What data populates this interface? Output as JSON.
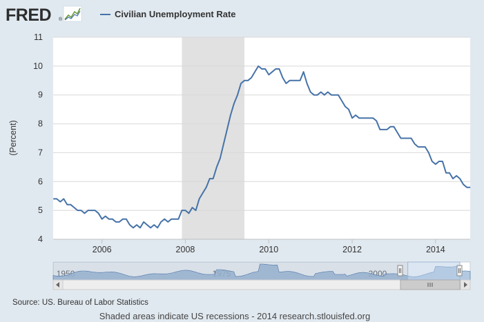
{
  "header": {
    "logo_text": "FRED",
    "logo_mark": "®",
    "logo_icon": "trend-graph-icon"
  },
  "colors": {
    "series": "#4572a7",
    "recession": "#e1e1e1",
    "background": "#e1e9f0",
    "plot_background": "#ffffff",
    "navigator_fill": "#a6bfdd"
  },
  "chart_data": {
    "type": "line",
    "title": "",
    "xlabel": "",
    "ylabel": "(Percent)",
    "xlim": [
      2004.83,
      2014.83
    ],
    "ylim": [
      4,
      11
    ],
    "yticks": [
      "4",
      "5",
      "6",
      "7",
      "8",
      "9",
      "10",
      "11"
    ],
    "xticks": [
      "2006",
      "2008",
      "2010",
      "2012",
      "2014"
    ],
    "grid": "horizontal",
    "legend": "top-left",
    "recessions": [
      {
        "start": "2007-12",
        "end": "2009-06"
      }
    ],
    "series": [
      {
        "name": "Civilian Unemployment Rate",
        "x_start": "2004-11",
        "frequency": "monthly",
        "values": [
          5.4,
          5.4,
          5.3,
          5.4,
          5.2,
          5.2,
          5.1,
          5.0,
          5.0,
          4.9,
          5.0,
          5.0,
          5.0,
          4.9,
          4.7,
          4.8,
          4.7,
          4.7,
          4.6,
          4.6,
          4.7,
          4.7,
          4.5,
          4.4,
          4.5,
          4.4,
          4.6,
          4.5,
          4.4,
          4.5,
          4.4,
          4.6,
          4.7,
          4.6,
          4.7,
          4.7,
          4.7,
          5.0,
          5.0,
          4.9,
          5.1,
          5.0,
          5.4,
          5.6,
          5.8,
          6.1,
          6.1,
          6.5,
          6.8,
          7.3,
          7.8,
          8.3,
          8.7,
          9.0,
          9.4,
          9.5,
          9.5,
          9.6,
          9.8,
          10.0,
          9.9,
          9.9,
          9.7,
          9.8,
          9.9,
          9.9,
          9.6,
          9.4,
          9.5,
          9.5,
          9.5,
          9.5,
          9.8,
          9.4,
          9.1,
          9.0,
          9.0,
          9.1,
          9.0,
          9.1,
          9.0,
          9.0,
          9.0,
          8.8,
          8.6,
          8.5,
          8.2,
          8.3,
          8.2,
          8.2,
          8.2,
          8.2,
          8.2,
          8.1,
          7.8,
          7.8,
          7.8,
          7.9,
          7.9,
          7.7,
          7.5,
          7.5,
          7.5,
          7.5,
          7.3,
          7.2,
          7.2,
          7.2,
          7.0,
          6.7,
          6.6,
          6.7,
          6.7,
          6.3,
          6.3,
          6.1,
          6.2,
          6.1,
          5.9,
          5.8,
          5.8
        ]
      }
    ],
    "navigator": {
      "labels": [
        "1950",
        "1975",
        "2000"
      ],
      "label_years": [
        1950,
        1975,
        2000
      ],
      "range": [
        1948,
        2014.83
      ],
      "selected": [
        2004.83,
        2014.83
      ]
    }
  },
  "footer": {
    "source": "Source: US. Bureau of Labor Statistics",
    "note": "Shaded areas indicate US recessions - 2014 research.stlouisfed.org"
  }
}
